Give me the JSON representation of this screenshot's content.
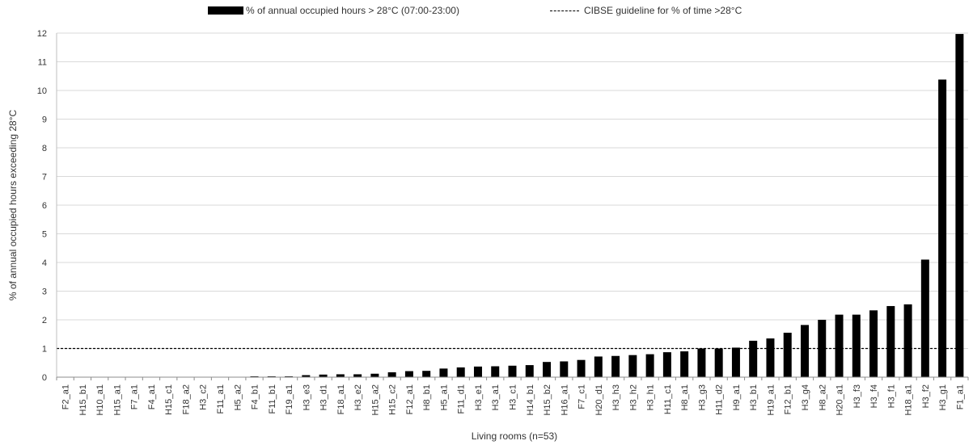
{
  "chart_data": {
    "type": "bar",
    "xlabel": "Living rooms (n=53)",
    "ylabel": "% of annual occupied hours exceeding 28°C",
    "ylim": [
      0,
      12
    ],
    "yticks": [
      0,
      1,
      2,
      3,
      4,
      5,
      6,
      7,
      8,
      9,
      10,
      11,
      12
    ],
    "grid": "horizontal",
    "legend_position": "top",
    "categories": [
      "F2_a1",
      "H15_b1",
      "H10_a1",
      "H15_a1",
      "F7_a1",
      "F4_a1",
      "H15_c1",
      "F18_a2",
      "H3_c2",
      "F11_a1",
      "H5_a2",
      "F4_b1",
      "F11_b1",
      "F19_a1",
      "H3_e3",
      "H3_d1",
      "F18_a1",
      "H3_e2",
      "H15_a2",
      "H15_c2",
      "F12_a1",
      "H8_b1",
      "H5_a1",
      "F11_d1",
      "H3_e1",
      "H3_a1",
      "H3_c1",
      "H14_b1",
      "H15_b2",
      "H16_a1",
      "F7_c1",
      "H20_d1",
      "H3_h3",
      "H3_h2",
      "H3_h1",
      "H11_c1",
      "H8_a1",
      "H3_g3",
      "H11_d2",
      "H9_a1",
      "H3_b1",
      "H19_a1",
      "F12_b1",
      "H3_g4",
      "H8_a2",
      "H20_a1",
      "H3_f3",
      "H3_f4",
      "H3_f1",
      "H18_a1",
      "H3_f2",
      "H3_g1",
      "F1_a1"
    ],
    "series": [
      {
        "name": "% of annual occupied hours > 28°C (07:00-23:00)",
        "color": "#000000",
        "values": [
          0,
          0,
          0,
          0,
          0,
          0,
          0,
          0,
          0,
          0,
          0,
          0.03,
          0.03,
          0.03,
          0.07,
          0.09,
          0.1,
          0.1,
          0.12,
          0.17,
          0.21,
          0.22,
          0.3,
          0.34,
          0.37,
          0.38,
          0.4,
          0.42,
          0.53,
          0.55,
          0.6,
          0.72,
          0.74,
          0.77,
          0.8,
          0.87,
          0.9,
          1.0,
          1.0,
          1.03,
          1.27,
          1.35,
          1.55,
          1.82,
          2.0,
          2.18,
          2.18,
          2.33,
          2.48,
          2.54,
          4.1,
          10.38,
          11.97
        ]
      }
    ],
    "reference_line": {
      "name": "CIBSE guideline for % of time >28°C",
      "value": 1,
      "style": "dashed",
      "color": "#000000"
    }
  }
}
